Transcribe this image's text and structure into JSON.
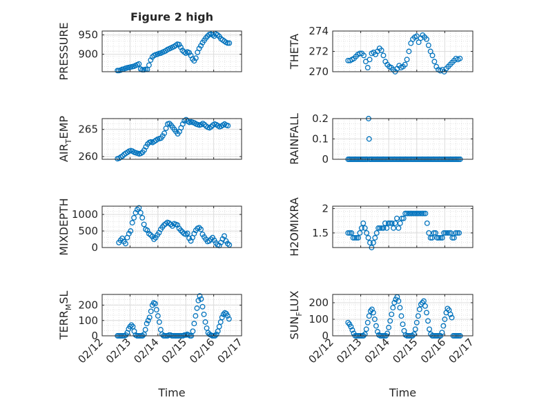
{
  "figure_title": "Figure 2 high",
  "colors": {
    "marker": "#0072BD",
    "axis": "#262626",
    "grid": "#d9d9d9"
  },
  "chart_data": [
    {
      "type": "scatter",
      "id": "pressure",
      "title": "Figure 2 high",
      "ylabel": {
        "main": "PRESSURE"
      },
      "xlim": [
        0,
        5
      ],
      "ylim": [
        855,
        960
      ],
      "yticks": [
        900,
        950
      ],
      "ytick_labels": [
        "900",
        "950"
      ],
      "xlabel": "",
      "xtick_labels": [],
      "x": [
        0.55,
        0.6,
        0.66,
        0.72,
        0.78,
        0.84,
        0.9,
        0.96,
        1.02,
        1.08,
        1.14,
        1.2,
        1.26,
        1.32,
        1.38,
        1.44,
        1.5,
        1.56,
        1.62,
        1.68,
        1.74,
        1.8,
        1.86,
        1.92,
        1.98,
        2.04,
        2.1,
        2.16,
        2.22,
        2.28,
        2.34,
        2.4,
        2.46,
        2.52,
        2.58,
        2.64,
        2.7,
        2.76,
        2.82,
        2.88,
        2.94,
        3.0,
        3.06,
        3.12,
        3.18,
        3.24,
        3.3,
        3.36,
        3.42,
        3.48,
        3.54,
        3.6,
        3.66,
        3.72,
        3.78,
        3.84,
        3.9,
        3.96,
        4.02,
        4.08,
        4.14,
        4.2,
        4.26,
        4.32,
        4.38,
        4.44,
        4.5,
        4.56
      ],
      "y": [
        858,
        858,
        859,
        861,
        862,
        864,
        865,
        866,
        867,
        868,
        869,
        871,
        873,
        875,
        862,
        860,
        860,
        861,
        861,
        872,
        885,
        893,
        897,
        899,
        900,
        902,
        903,
        905,
        907,
        909,
        912,
        914,
        916,
        918,
        920,
        923,
        926,
        925,
        918,
        910,
        906,
        903,
        906,
        904,
        897,
        888,
        883,
        890,
        905,
        915,
        922,
        930,
        936,
        942,
        947,
        951,
        952,
        950,
        947,
        952,
        950,
        946,
        940,
        937,
        934,
        931,
        929,
        929
      ]
    },
    {
      "type": "scatter",
      "id": "theta",
      "ylabel": {
        "main": "THETA"
      },
      "xlim": [
        0,
        5
      ],
      "ylim": [
        270,
        274
      ],
      "yticks": [
        270,
        272,
        274
      ],
      "ytick_labels": [
        "270",
        "272",
        "274"
      ],
      "xlabel": "",
      "xtick_labels": [],
      "x": [
        0.55,
        0.62,
        0.69,
        0.76,
        0.83,
        0.9,
        0.97,
        1.04,
        1.11,
        1.18,
        1.25,
        1.32,
        1.39,
        1.46,
        1.53,
        1.6,
        1.67,
        1.74,
        1.81,
        1.88,
        1.95,
        2.02,
        2.09,
        2.16,
        2.23,
        2.3,
        2.37,
        2.44,
        2.51,
        2.58,
        2.65,
        2.72,
        2.79,
        2.86,
        2.93,
        3.0,
        3.07,
        3.14,
        3.21,
        3.28,
        3.35,
        3.42,
        3.49,
        3.56,
        3.63,
        3.7,
        3.77,
        3.84,
        3.91,
        3.98,
        4.05,
        4.12,
        4.19,
        4.26,
        4.33,
        4.4,
        4.47,
        4.54
      ],
      "y": [
        271.1,
        271.1,
        271.2,
        271.3,
        271.5,
        271.7,
        271.8,
        271.8,
        271.6,
        271.0,
        270.4,
        271.2,
        271.8,
        271.9,
        271.7,
        272.0,
        272.3,
        272.1,
        271.6,
        271.0,
        270.7,
        270.5,
        270.4,
        270.2,
        270.0,
        270.3,
        270.6,
        270.4,
        270.5,
        270.7,
        271.2,
        272.0,
        272.8,
        273.2,
        273.4,
        273.5,
        272.9,
        273.3,
        273.6,
        273.4,
        273.2,
        272.6,
        272.0,
        271.6,
        271.0,
        270.5,
        270.2,
        270.1,
        270.2,
        270.0,
        270.3,
        270.5,
        270.7,
        270.9,
        271.1,
        271.3,
        271.2,
        271.3
      ]
    },
    {
      "type": "scatter",
      "id": "air_temp",
      "ylabel": {
        "main": "AIR",
        "subscript": "T",
        "suffix": "EMP"
      },
      "xlim": [
        0,
        5
      ],
      "ylim": [
        259.5,
        267
      ],
      "yticks": [
        260,
        265
      ],
      "ytick_labels": [
        "260",
        "265"
      ],
      "xlabel": "",
      "xtick_labels": [],
      "x": [
        0.55,
        0.61,
        0.67,
        0.73,
        0.79,
        0.85,
        0.91,
        0.97,
        1.03,
        1.09,
        1.15,
        1.21,
        1.27,
        1.33,
        1.39,
        1.45,
        1.51,
        1.57,
        1.63,
        1.69,
        1.75,
        1.81,
        1.87,
        1.93,
        1.99,
        2.05,
        2.11,
        2.17,
        2.23,
        2.29,
        2.35,
        2.41,
        2.47,
        2.53,
        2.59,
        2.65,
        2.71,
        2.77,
        2.83,
        2.89,
        2.95,
        3.01,
        3.07,
        3.13,
        3.19,
        3.25,
        3.31,
        3.37,
        3.43,
        3.49,
        3.55,
        3.61,
        3.67,
        3.73,
        3.79,
        3.85,
        3.91,
        3.97,
        4.03,
        4.09,
        4.15,
        4.21,
        4.27,
        4.33,
        4.39,
        4.45,
        4.51
      ],
      "y": [
        259.6,
        259.7,
        259.9,
        260.1,
        260.4,
        260.6,
        260.8,
        261.0,
        261.1,
        261.0,
        260.8,
        260.7,
        260.6,
        260.5,
        260.6,
        260.8,
        261.2,
        261.8,
        262.3,
        262.6,
        262.7,
        262.6,
        262.8,
        263.0,
        263.2,
        263.3,
        263.4,
        263.8,
        264.3,
        265.2,
        266.0,
        266.1,
        265.8,
        265.4,
        265.0,
        264.6,
        264.2,
        264.6,
        265.3,
        266.0,
        266.6,
        266.8,
        266.5,
        266.3,
        266.4,
        266.3,
        266.2,
        266.0,
        265.9,
        265.8,
        265.9,
        266.1,
        265.9,
        265.6,
        265.4,
        265.3,
        265.5,
        265.8,
        266.0,
        265.9,
        265.7,
        265.5,
        265.6,
        265.8,
        266.0,
        265.8,
        265.7
      ]
    },
    {
      "type": "scatter",
      "id": "rainfall",
      "ylabel": {
        "main": "RAINFALL"
      },
      "xlim": [
        0,
        5
      ],
      "ylim": [
        0,
        0.2
      ],
      "yticks": [
        0,
        0.1,
        0.2
      ],
      "ytick_labels": [
        "0",
        "0.1",
        "0.2"
      ],
      "xlabel": "",
      "xtick_labels": [],
      "x": [
        0.55,
        0.6,
        0.65,
        0.7,
        0.75,
        0.8,
        0.85,
        0.9,
        0.95,
        1.0,
        1.05,
        1.1,
        1.15,
        1.2,
        1.25,
        1.28,
        1.3,
        1.32,
        1.35,
        1.4,
        1.45,
        1.5,
        1.55,
        1.6,
        1.65,
        1.7,
        1.75,
        1.8,
        1.85,
        1.9,
        1.95,
        2.0,
        2.05,
        2.1,
        2.15,
        2.2,
        2.25,
        2.3,
        2.35,
        2.4,
        2.45,
        2.5,
        2.55,
        2.6,
        2.65,
        2.7,
        2.75,
        2.8,
        2.85,
        2.9,
        2.95,
        3.0,
        3.05,
        3.1,
        3.15,
        3.2,
        3.25,
        3.3,
        3.35,
        3.4,
        3.45,
        3.5,
        3.55,
        3.6,
        3.65,
        3.7,
        3.75,
        3.8,
        3.85,
        3.9,
        3.95,
        4.0,
        4.05,
        4.1,
        4.15,
        4.2,
        4.25,
        4.3,
        4.35,
        4.4,
        4.45,
        4.5,
        4.55
      ],
      "y": [
        0,
        0,
        0,
        0,
        0,
        0,
        0,
        0,
        0,
        0,
        0,
        0,
        0,
        0,
        0,
        0.2,
        0.1,
        0,
        0,
        0,
        0,
        0,
        0,
        0,
        0,
        0,
        0,
        0,
        0,
        0,
        0,
        0,
        0,
        0,
        0,
        0,
        0,
        0,
        0,
        0,
        0,
        0,
        0,
        0,
        0,
        0,
        0,
        0,
        0,
        0,
        0,
        0,
        0,
        0,
        0,
        0,
        0,
        0,
        0,
        0,
        0,
        0,
        0,
        0,
        0,
        0,
        0,
        0,
        0,
        0,
        0,
        0,
        0,
        0,
        0,
        0,
        0,
        0,
        0,
        0,
        0,
        0,
        0
      ]
    },
    {
      "type": "scatter",
      "id": "mixdepth",
      "ylabel": {
        "main": "MIXDEPTH"
      },
      "xlim": [
        0,
        5
      ],
      "ylim": [
        0,
        1250
      ],
      "yticks": [
        0,
        500,
        1000
      ],
      "ytick_labels": [
        "0",
        "500",
        "1000"
      ],
      "xlabel": "",
      "xtick_labels": [],
      "x": [
        0.6,
        0.66,
        0.72,
        0.78,
        0.84,
        0.9,
        0.96,
        1.02,
        1.08,
        1.14,
        1.2,
        1.26,
        1.32,
        1.38,
        1.44,
        1.5,
        1.56,
        1.62,
        1.68,
        1.74,
        1.8,
        1.86,
        1.92,
        1.98,
        2.04,
        2.1,
        2.16,
        2.22,
        2.28,
        2.34,
        2.4,
        2.46,
        2.52,
        2.58,
        2.64,
        2.7,
        2.76,
        2.82,
        2.88,
        2.94,
        3.0,
        3.06,
        3.12,
        3.18,
        3.24,
        3.3,
        3.36,
        3.42,
        3.48,
        3.54,
        3.6,
        3.66,
        3.72,
        3.78,
        3.84,
        3.9,
        3.96,
        4.02,
        4.08,
        4.14,
        4.2,
        4.26,
        4.32,
        4.38,
        4.44,
        4.5,
        4.56
      ],
      "y": [
        150,
        220,
        280,
        180,
        120,
        300,
        420,
        500,
        750,
        900,
        1050,
        1150,
        1200,
        1050,
        900,
        700,
        550,
        520,
        420,
        380,
        330,
        250,
        300,
        380,
        450,
        550,
        620,
        680,
        720,
        760,
        740,
        700,
        650,
        720,
        700,
        680,
        580,
        520,
        470,
        420,
        400,
        430,
        280,
        200,
        300,
        420,
        520,
        580,
        600,
        550,
        400,
        320,
        250,
        180,
        200,
        250,
        300,
        220,
        140,
        80,
        60,
        150,
        260,
        350,
        200,
        120,
        80
      ]
    },
    {
      "type": "scatter",
      "id": "h2omixra",
      "ylabel": {
        "main": "H2OMIXRA"
      },
      "xlim": [
        0,
        5
      ],
      "ylim": [
        1.2,
        2.05
      ],
      "yticks": [
        1.5,
        2
      ],
      "ytick_labels": [
        "1.5",
        "2"
      ],
      "xlabel": "",
      "xtick_labels": [],
      "x": [
        0.55,
        0.61,
        0.67,
        0.73,
        0.79,
        0.85,
        0.91,
        0.97,
        1.03,
        1.09,
        1.15,
        1.21,
        1.27,
        1.33,
        1.39,
        1.45,
        1.51,
        1.57,
        1.63,
        1.69,
        1.75,
        1.81,
        1.87,
        1.93,
        1.99,
        2.05,
        2.11,
        2.17,
        2.23,
        2.29,
        2.35,
        2.41,
        2.47,
        2.53,
        2.59,
        2.65,
        2.71,
        2.77,
        2.83,
        2.89,
        2.95,
        3.01,
        3.07,
        3.13,
        3.19,
        3.25,
        3.31,
        3.37,
        3.43,
        3.49,
        3.55,
        3.61,
        3.67,
        3.73,
        3.79,
        3.85,
        3.91,
        3.97,
        4.03,
        4.09,
        4.15,
        4.21,
        4.27,
        4.33,
        4.39,
        4.45,
        4.51
      ],
      "y": [
        1.5,
        1.5,
        1.5,
        1.4,
        1.4,
        1.4,
        1.4,
        1.5,
        1.6,
        1.7,
        1.6,
        1.5,
        1.4,
        1.3,
        1.2,
        1.3,
        1.4,
        1.5,
        1.6,
        1.6,
        1.6,
        1.6,
        1.7,
        1.6,
        1.7,
        1.7,
        1.7,
        1.6,
        1.7,
        1.8,
        1.6,
        1.7,
        1.8,
        1.8,
        1.9,
        1.9,
        1.9,
        1.9,
        1.9,
        1.9,
        1.9,
        1.9,
        1.9,
        1.9,
        1.9,
        1.9,
        1.9,
        1.7,
        1.5,
        1.4,
        1.4,
        1.5,
        1.5,
        1.4,
        1.4,
        1.4,
        1.4,
        1.5,
        1.5,
        1.5,
        1.5,
        1.5,
        1.4,
        1.4,
        1.5,
        1.5,
        1.5
      ]
    },
    {
      "type": "scatter",
      "id": "terr_msl",
      "ylabel": {
        "main": "TERR",
        "subscript": "M",
        "suffix": "SL"
      },
      "xlim": [
        0,
        5
      ],
      "ylim": [
        0,
        270
      ],
      "yticks": [
        0,
        100,
        200
      ],
      "ytick_labels": [
        "0",
        "100",
        "200"
      ],
      "xlabel": "Time",
      "xtick_labels": [
        "02/12",
        "02/13",
        "02/14",
        "02/15",
        "02/16",
        "02/17"
      ],
      "x": [
        0.55,
        0.6,
        0.65,
        0.7,
        0.75,
        0.8,
        0.85,
        0.9,
        0.95,
        1.0,
        1.05,
        1.1,
        1.15,
        1.2,
        1.25,
        1.3,
        1.35,
        1.4,
        1.45,
        1.5,
        1.55,
        1.6,
        1.65,
        1.7,
        1.75,
        1.8,
        1.85,
        1.9,
        1.95,
        2.0,
        2.05,
        2.1,
        2.15,
        2.2,
        2.25,
        2.3,
        2.35,
        2.4,
        2.45,
        2.5,
        2.55,
        2.6,
        2.65,
        2.7,
        2.75,
        2.8,
        2.85,
        2.9,
        2.95,
        3.0,
        3.05,
        3.1,
        3.15,
        3.2,
        3.25,
        3.3,
        3.35,
        3.4,
        3.45,
        3.5,
        3.55,
        3.6,
        3.65,
        3.7,
        3.75,
        3.8,
        3.85,
        3.9,
        3.95,
        4.0,
        4.05,
        4.1,
        4.15,
        4.2,
        4.25,
        4.3,
        4.35,
        4.4,
        4.45,
        4.5,
        4.55
      ],
      "y": [
        0,
        0,
        0,
        0,
        0,
        0,
        5,
        20,
        45,
        60,
        70,
        60,
        30,
        5,
        0,
        0,
        0,
        0,
        0,
        10,
        40,
        80,
        100,
        120,
        160,
        200,
        215,
        210,
        170,
        130,
        90,
        40,
        10,
        0,
        0,
        0,
        0,
        5,
        5,
        0,
        0,
        0,
        0,
        0,
        0,
        0,
        0,
        0,
        5,
        5,
        10,
        5,
        0,
        0,
        30,
        80,
        130,
        180,
        230,
        260,
        240,
        190,
        140,
        90,
        50,
        20,
        10,
        5,
        0,
        0,
        0,
        10,
        30,
        60,
        90,
        120,
        140,
        150,
        145,
        130,
        110
      ]
    },
    {
      "type": "scatter",
      "id": "sun_flux",
      "ylabel": {
        "main": "SUN",
        "subscript": "F",
        "suffix": "LUX"
      },
      "xlim": [
        0,
        5
      ],
      "ylim": [
        0,
        250
      ],
      "yticks": [
        0,
        100,
        200
      ],
      "ytick_labels": [
        "0",
        "100",
        "200"
      ],
      "xlabel": "Time",
      "xtick_labels": [
        "02/12",
        "02/13",
        "02/14",
        "02/15",
        "02/16",
        "02/17"
      ],
      "x": [
        0.55,
        0.6,
        0.65,
        0.7,
        0.75,
        0.8,
        0.85,
        0.9,
        0.95,
        1.0,
        1.05,
        1.1,
        1.15,
        1.2,
        1.25,
        1.3,
        1.35,
        1.4,
        1.45,
        1.5,
        1.55,
        1.6,
        1.65,
        1.7,
        1.75,
        1.8,
        1.85,
        1.9,
        1.95,
        2.0,
        2.05,
        2.1,
        2.15,
        2.2,
        2.25,
        2.3,
        2.35,
        2.4,
        2.45,
        2.5,
        2.55,
        2.6,
        2.65,
        2.7,
        2.75,
        2.8,
        2.85,
        2.9,
        2.95,
        3.0,
        3.05,
        3.1,
        3.15,
        3.2,
        3.25,
        3.3,
        3.35,
        3.4,
        3.45,
        3.5,
        3.55,
        3.6,
        3.65,
        3.7,
        3.75,
        3.8,
        3.85,
        3.9,
        3.95,
        4.0,
        4.05,
        4.1,
        4.15,
        4.2,
        4.25,
        4.3,
        4.35,
        4.4,
        4.45,
        4.5,
        4.55
      ],
      "y": [
        80,
        70,
        55,
        35,
        15,
        0,
        0,
        0,
        0,
        0,
        0,
        0,
        10,
        40,
        80,
        120,
        150,
        160,
        140,
        100,
        60,
        25,
        5,
        0,
        0,
        0,
        0,
        0,
        15,
        50,
        90,
        130,
        170,
        200,
        220,
        235,
        210,
        170,
        120,
        70,
        30,
        5,
        0,
        0,
        0,
        0,
        0,
        10,
        40,
        80,
        120,
        160,
        190,
        200,
        210,
        180,
        140,
        90,
        40,
        10,
        0,
        0,
        0,
        0,
        0,
        0,
        0,
        20,
        60,
        100,
        140,
        165,
        155,
        130,
        110,
        0,
        0,
        0,
        0,
        0,
        0
      ]
    }
  ]
}
